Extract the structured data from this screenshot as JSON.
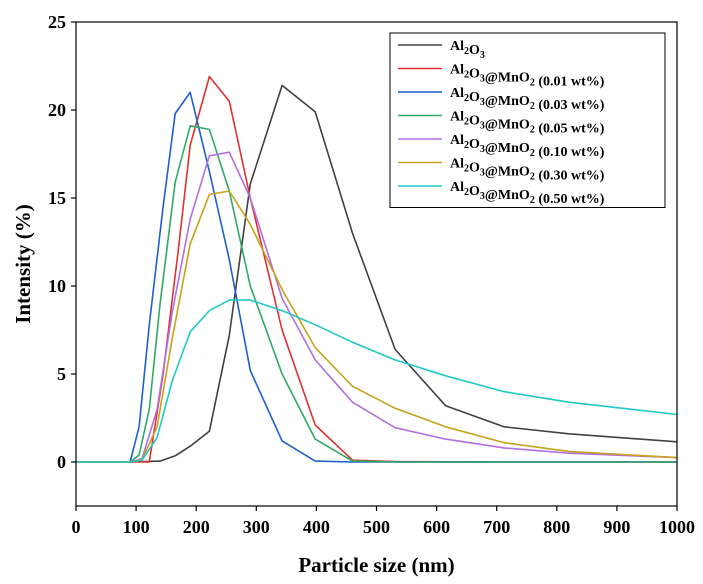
{
  "chart_data": {
    "type": "line",
    "title": "",
    "xlabel": "Particle size (nm)",
    "ylabel": "Intensity (%)",
    "xlim": [
      0,
      1000
    ],
    "ylim": [
      -2.5,
      25
    ],
    "xticks": [
      0,
      100,
      200,
      300,
      400,
      500,
      600,
      700,
      800,
      900,
      1000
    ],
    "yticks": [
      0,
      5,
      10,
      15,
      20,
      25
    ],
    "grid": false,
    "legend_position": "top-right",
    "series": [
      {
        "name": "Al2O3",
        "label_parts": [
          [
            "Al",
            ""
          ],
          [
            "2",
            "sub"
          ],
          [
            "O",
            ""
          ],
          [
            "3",
            "sub"
          ]
        ],
        "color": "#404040",
        "x": [
          0,
          90,
          140,
          165,
          190,
          222,
          255,
          290,
          343,
          398,
          460,
          531,
          615,
          712,
          820,
          1000
        ],
        "y": [
          0,
          0,
          0.05,
          0.35,
          0.9,
          1.75,
          7.2,
          15.8,
          21.4,
          19.9,
          13.0,
          6.4,
          3.2,
          2.0,
          1.6,
          1.15
        ]
      },
      {
        "name": "Al2O3@MnO2 (0.01 wt%)",
        "label_parts": [
          [
            "Al",
            ""
          ],
          [
            "2",
            "sub"
          ],
          [
            "O",
            ""
          ],
          [
            "3",
            "sub"
          ],
          [
            "@MnO",
            ""
          ],
          [
            "2",
            "sub"
          ],
          [
            " (0.01 wt%)",
            ""
          ]
        ],
        "color": "#e03030",
        "x": [
          0,
          90,
          122,
          145,
          170,
          190,
          222,
          255,
          290,
          343,
          398,
          460,
          531,
          615,
          712,
          1000
        ],
        "y": [
          0,
          0,
          0,
          5.0,
          12.0,
          18.0,
          21.9,
          20.5,
          15.0,
          7.5,
          2.1,
          0.1,
          0.02,
          0.01,
          0,
          0
        ]
      },
      {
        "name": "Al2O3@MnO2 (0.03 wt%)",
        "label_parts": [
          [
            "Al",
            ""
          ],
          [
            "2",
            "sub"
          ],
          [
            "O",
            ""
          ],
          [
            "3",
            "sub"
          ],
          [
            "@MnO",
            ""
          ],
          [
            "2",
            "sub"
          ],
          [
            " (0.03 wt%)",
            ""
          ]
        ],
        "color": "#1f5fd0",
        "x": [
          0,
          90,
          105,
          122,
          145,
          165,
          190,
          222,
          255,
          290,
          343,
          398,
          460,
          1000
        ],
        "y": [
          0,
          0,
          2.0,
          7.8,
          14.5,
          19.8,
          21.0,
          16.5,
          11.5,
          5.2,
          1.2,
          0.05,
          0,
          0
        ]
      },
      {
        "name": "Al2O3@MnO2 (0.05 wt%)",
        "label_parts": [
          [
            "Al",
            ""
          ],
          [
            "2",
            "sub"
          ],
          [
            "O",
            ""
          ],
          [
            "3",
            "sub"
          ],
          [
            "@MnO",
            ""
          ],
          [
            "2",
            "sub"
          ],
          [
            " (0.05 wt%)",
            ""
          ]
        ],
        "color": "#2eaa66",
        "x": [
          0,
          90,
          105,
          122,
          140,
          165,
          190,
          222,
          255,
          290,
          343,
          398,
          460,
          531,
          1000
        ],
        "y": [
          0,
          0,
          0.4,
          3.0,
          9.0,
          15.9,
          19.1,
          18.9,
          15.4,
          10.0,
          5.0,
          1.3,
          0.05,
          0,
          0
        ]
      },
      {
        "name": "Al2O3@MnO2 (0.10 wt%)",
        "label_parts": [
          [
            "Al",
            ""
          ],
          [
            "2",
            "sub"
          ],
          [
            "O",
            ""
          ],
          [
            "3",
            "sub"
          ],
          [
            "@MnO",
            ""
          ],
          [
            "2",
            "sub"
          ],
          [
            " (0.10 wt%)",
            ""
          ]
        ],
        "color": "#b070e0",
        "x": [
          0,
          90,
          110,
          135,
          160,
          190,
          222,
          255,
          290,
          343,
          398,
          460,
          531,
          615,
          712,
          820,
          1000
        ],
        "y": [
          0,
          0,
          0.2,
          3.0,
          8.5,
          13.8,
          17.4,
          17.6,
          15.0,
          9.3,
          5.8,
          3.4,
          1.95,
          1.3,
          0.8,
          0.5,
          0.25
        ]
      },
      {
        "name": "Al2O3@MnO2 (0.30 wt%)",
        "label_parts": [
          [
            "Al",
            ""
          ],
          [
            "2",
            "sub"
          ],
          [
            "O",
            ""
          ],
          [
            "3",
            "sub"
          ],
          [
            "@MnO",
            ""
          ],
          [
            "2",
            "sub"
          ],
          [
            " (0.30 wt%)",
            ""
          ]
        ],
        "color": "#c8a21a",
        "x": [
          0,
          90,
          110,
          135,
          160,
          190,
          222,
          255,
          290,
          343,
          398,
          460,
          531,
          615,
          712,
          820,
          1000
        ],
        "y": [
          0,
          0,
          0.15,
          2.0,
          7.0,
          12.4,
          15.2,
          15.4,
          13.5,
          9.8,
          6.5,
          4.3,
          3.05,
          2.0,
          1.1,
          0.6,
          0.25
        ]
      },
      {
        "name": "Al2O3@MnO2 (0.50 wt%)",
        "label_parts": [
          [
            "Al",
            ""
          ],
          [
            "2",
            "sub"
          ],
          [
            "O",
            ""
          ],
          [
            "3",
            "sub"
          ],
          [
            "@MnO",
            ""
          ],
          [
            "2",
            "sub"
          ],
          [
            " (0.50 wt%)",
            ""
          ]
        ],
        "color": "#22c8c8",
        "x": [
          0,
          90,
          110,
          135,
          160,
          190,
          222,
          255,
          290,
          343,
          398,
          460,
          531,
          615,
          712,
          820,
          1000
        ],
        "y": [
          0,
          0,
          0.1,
          1.4,
          4.6,
          7.4,
          8.6,
          9.2,
          9.2,
          8.6,
          7.8,
          6.8,
          5.8,
          4.9,
          4.0,
          3.4,
          2.7
        ]
      }
    ]
  }
}
